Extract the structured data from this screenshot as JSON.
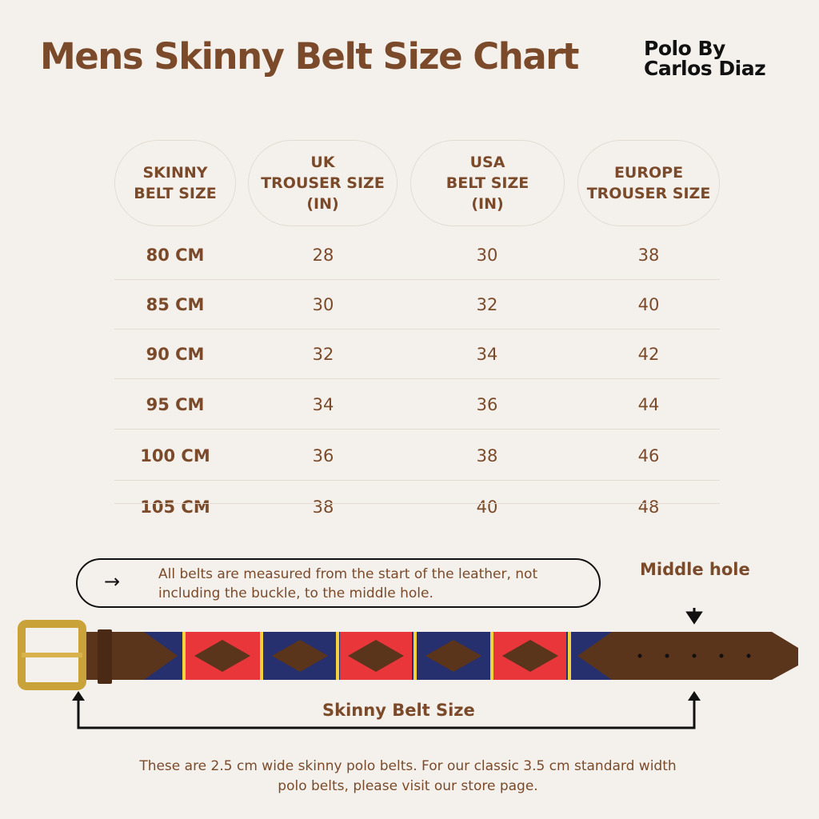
{
  "header": {
    "title": "Mens Skinny Belt Size Chart",
    "brand": [
      "Polo By",
      "Carlos Diaz"
    ]
  },
  "table": {
    "headers": [
      [
        "SKINNY",
        "BELT SIZE"
      ],
      [
        "UK",
        "TROUSER SIZE",
        "(IN)"
      ],
      [
        "USA",
        "BELT SIZE",
        "(IN)"
      ],
      [
        "EUROPE",
        "TROUSER SIZE"
      ]
    ],
    "rows": [
      [
        "80 CM",
        "28",
        "30",
        "38"
      ],
      [
        "85 CM",
        "30",
        "32",
        "40"
      ],
      [
        "90 CM",
        "32",
        "34",
        "42"
      ],
      [
        "95 CM",
        "34",
        "36",
        "44"
      ],
      [
        "100 CM",
        "36",
        "38",
        "46"
      ],
      [
        "105 CM",
        "38",
        "40",
        "48"
      ]
    ]
  },
  "note": {
    "icon": "right-arrow-icon",
    "arrow": "→",
    "lines": [
      "All belts are measured from the start of the leather, not",
      "including the buckle, to the middle hole."
    ]
  },
  "diagram": {
    "middle_hole_label": "Middle hole",
    "skinny_belt_size_label": "Skinny Belt Size",
    "colors": {
      "leather": "#5a341b",
      "navy": "#26306e",
      "red": "#e8363b",
      "yellow": "#f2d33b",
      "buckle": "#c9a23a"
    }
  },
  "footer": {
    "lines": [
      "These are 2.5 cm wide skinny polo belts. For our classic 3.5 cm standard width",
      "polo belts, please visit our store page."
    ]
  }
}
